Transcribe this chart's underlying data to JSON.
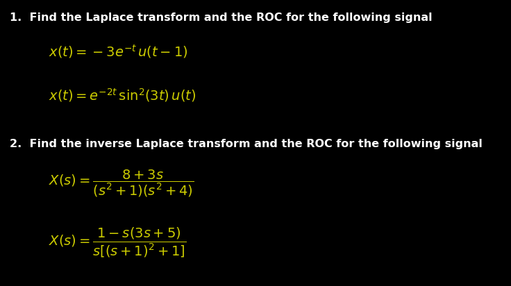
{
  "background_color": "#000000",
  "text_color_white": "#ffffff",
  "text_color_yellow": "#cccc00",
  "heading1": "1.  Find the Laplace transform and the ROC for the following signal",
  "heading2": "2.  Find the inverse Laplace transform and the ROC for the following signal",
  "eq1a": "$x(t) = -3e^{-t}\\, u(t-1)$",
  "eq1b": "$x(t) = e^{-2t}\\,\\sin^2\\!(3t)\\, u(t)$",
  "eq2a": "$X(s) = \\dfrac{8+3s}{(s^2+1)(s^2+4)}$",
  "eq2b": "$X(s) = \\dfrac{1-s(3s+5)}{s[(s+1)^2+1]}$",
  "fig_width": 7.36,
  "fig_height": 4.12,
  "dpi": 100
}
